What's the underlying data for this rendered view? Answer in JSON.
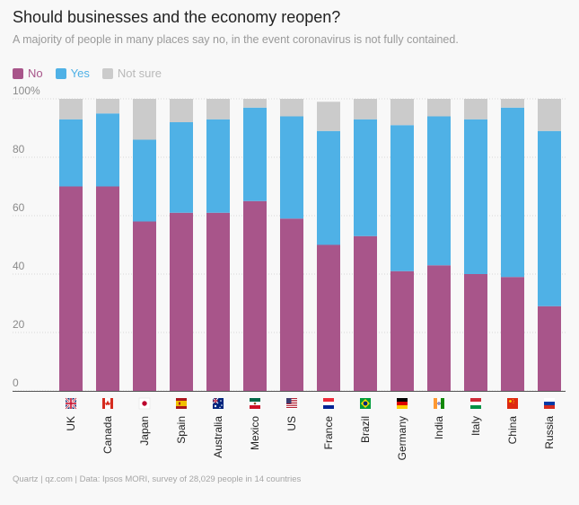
{
  "header": {
    "title": "Should businesses and the economy reopen?",
    "subtitle": "A majority of people in many places say no, in the event coronavirus is not fully contained."
  },
  "legend": [
    {
      "label": "No",
      "color": "#a8558a"
    },
    {
      "label": "Yes",
      "color": "#4fb1e6"
    },
    {
      "label": "Not sure",
      "color": "#cbcbcb"
    }
  ],
  "footer": {
    "source": "Quartz | qz.com | Data: Ipsos MORI, survey of 28,029 people in 14 countries"
  },
  "chart_data": {
    "type": "bar",
    "stacked": true,
    "title": "Should businesses and the economy reopen?",
    "xlabel": "",
    "ylabel": "",
    "ylim": [
      0,
      100
    ],
    "yticks": [
      "0",
      "20",
      "40",
      "60",
      "80",
      "100%"
    ],
    "categories": [
      "UK",
      "Canada",
      "Japan",
      "Spain",
      "Australia",
      "Mexico",
      "US",
      "France",
      "Brazil",
      "Germany",
      "India",
      "Italy",
      "China",
      "Russia"
    ],
    "series": [
      {
        "name": "No",
        "color": "#a8558a",
        "values": [
          70,
          70,
          58,
          61,
          61,
          65,
          59,
          50,
          53,
          41,
          43,
          40,
          39,
          29
        ]
      },
      {
        "name": "Yes",
        "color": "#4fb1e6",
        "values": [
          23,
          25,
          28,
          31,
          32,
          32,
          35,
          39,
          40,
          50,
          51,
          53,
          58,
          60
        ]
      },
      {
        "name": "Not sure",
        "color": "#cbcbcb",
        "values": [
          7,
          5,
          14,
          8,
          7,
          3,
          6,
          10,
          7,
          9,
          6,
          7,
          3,
          11
        ]
      }
    ],
    "flags": [
      "uk-flag-icon",
      "canada-flag-icon",
      "japan-flag-icon",
      "spain-flag-icon",
      "australia-flag-icon",
      "mexico-flag-icon",
      "us-flag-icon",
      "france-flag-icon",
      "brazil-flag-icon",
      "germany-flag-icon",
      "india-flag-icon",
      "italy-flag-icon",
      "china-flag-icon",
      "russia-flag-icon"
    ]
  }
}
